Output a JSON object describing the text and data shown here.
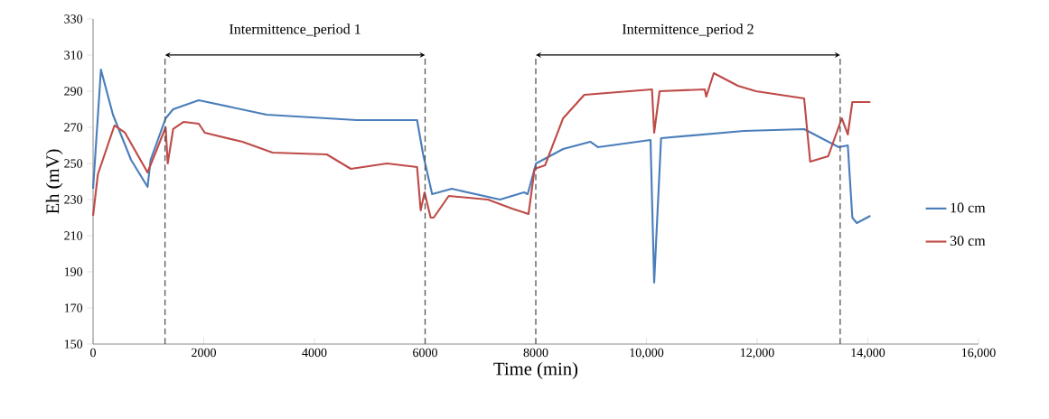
{
  "chart_data": {
    "type": "line",
    "xlabel": "Time (min)",
    "ylabel": "Eh (mV)",
    "xlim": [
      0,
      16000
    ],
    "ylim": [
      150,
      330
    ],
    "xticks": [
      {
        "value": 0,
        "label": "0"
      },
      {
        "value": 2000,
        "label": "2000"
      },
      {
        "value": 4000,
        "label": "4000"
      },
      {
        "value": 6000,
        "label": "6000"
      },
      {
        "value": 8000,
        "label": "8000"
      },
      {
        "value": 10000,
        "label": "10,000"
      },
      {
        "value": 12000,
        "label": "12,000"
      },
      {
        "value": 14000,
        "label": "14,000"
      },
      {
        "value": 16000,
        "label": "16,000"
      }
    ],
    "yticks": [
      150,
      170,
      190,
      210,
      230,
      250,
      270,
      290,
      310,
      330
    ],
    "grid": false,
    "legend": "right",
    "marker": "none",
    "line_style": "solid",
    "series": [
      {
        "name": "10 cm",
        "color": "#4a7ebb",
        "x": [
          0,
          142,
          359,
          686,
          985,
          1040,
          1311,
          1447,
          1910,
          3135,
          4767,
          5855,
          5964,
          6127,
          6482,
          7353,
          7788,
          7853,
          8005,
          8494,
          8984,
          9122,
          10073,
          10139,
          10264,
          11760,
          12849,
          13475,
          13638,
          13720,
          13801,
          14046
        ],
        "values": [
          236,
          302,
          277,
          252,
          237,
          252,
          275,
          280,
          285,
          277,
          274,
          274,
          255,
          233,
          236,
          230,
          234,
          233,
          250,
          258,
          262,
          259,
          263,
          184,
          264,
          268,
          269,
          259,
          260,
          220,
          217,
          221
        ]
      },
      {
        "name": "30 cm",
        "color": "#be4b48",
        "x": [
          0,
          87,
          386,
          577,
          985,
          1311,
          1349,
          1447,
          1638,
          1910,
          2019,
          2699,
          3244,
          4223,
          4658,
          5311,
          5855,
          5920,
          5990,
          6100,
          6155,
          6427,
          7135,
          7571,
          7869,
          7978,
          8168,
          8494,
          8876,
          10100,
          10139,
          10237,
          11053,
          11080,
          11216,
          11652,
          11977,
          12849,
          12958,
          13284,
          13529,
          13638,
          13720,
          14046
        ],
        "values": [
          221,
          244,
          271,
          267,
          245,
          270,
          250,
          269,
          273,
          272,
          267,
          262,
          256,
          255,
          247,
          250,
          248,
          224,
          234,
          220,
          220,
          232,
          230,
          225,
          222,
          247,
          249,
          275,
          288,
          291,
          267,
          290,
          291,
          287,
          300,
          293,
          290,
          286,
          251,
          254,
          275,
          266,
          284,
          284
        ]
      }
    ],
    "ref_lines": [
      {
        "axis": "x",
        "value": 1300,
        "label": null,
        "color": "#595959",
        "line_style": "dashed"
      },
      {
        "axis": "x",
        "value": 6000,
        "label": null,
        "color": "#595959",
        "line_style": "dashed"
      },
      {
        "axis": "x",
        "value": 8000,
        "label": null,
        "color": "#595959",
        "line_style": "dashed"
      },
      {
        "axis": "x",
        "value": 13500,
        "label": null,
        "color": "#595959",
        "line_style": "dashed"
      }
    ],
    "annotations": [
      "Intermittence_period 1",
      "Intermittence_period 2"
    ]
  }
}
